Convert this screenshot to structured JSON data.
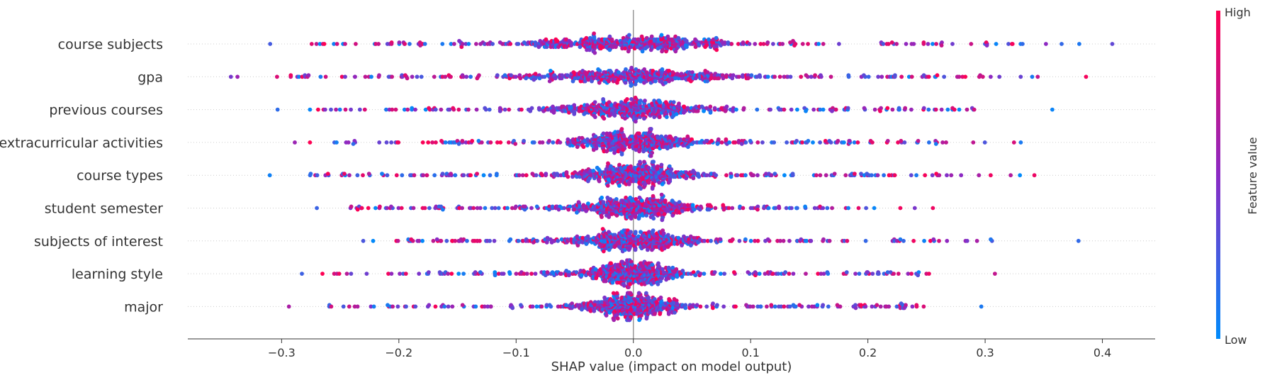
{
  "chart_data": {
    "type": "scatter",
    "subtype": "shap-beeswarm",
    "title": "",
    "xlabel": "SHAP value (impact on model output)",
    "ylabel": "",
    "xlim": [
      -0.38,
      0.445
    ],
    "xticks": [
      -0.3,
      -0.2,
      -0.1,
      0.0,
      0.1,
      0.2,
      0.3,
      0.4
    ],
    "xtick_labels": [
      "−0.3",
      "−0.2",
      "−0.1",
      "0.0",
      "0.1",
      "0.2",
      "0.3",
      "0.4"
    ],
    "zero_line": 0.0,
    "grid": false,
    "colorbar": {
      "label": "Feature value",
      "high_label": "High",
      "low_label": "Low",
      "high_color": "#ff0052",
      "low_color": "#008bfb"
    },
    "features": [
      {
        "name": "course subjects",
        "min": -0.31,
        "max": 0.408,
        "core_spread": 0.09,
        "extremes": [
          -0.31,
          0.408,
          0.38,
          0.365,
          0.352,
          0.33,
          0.32,
          0.3,
          0.288,
          0.272
        ]
      },
      {
        "name": "gpa",
        "min": -0.343,
        "max": 0.386,
        "core_spread": 0.08,
        "extremes": [
          -0.343,
          -0.338,
          -0.292,
          -0.28,
          0.386,
          0.345,
          0.34,
          0.33,
          0.305
        ]
      },
      {
        "name": "previous courses",
        "min": -0.303,
        "max": 0.357,
        "core_spread": 0.06,
        "extremes": [
          -0.303,
          -0.276,
          -0.254,
          0.357,
          0.285,
          0.278,
          0.268
        ]
      },
      {
        "name": "extracurricular activities",
        "min": -0.289,
        "max": 0.33,
        "core_spread": 0.05,
        "extremes": [
          -0.289,
          -0.276,
          -0.255,
          0.33,
          0.325,
          0.3,
          0.29
        ]
      },
      {
        "name": "course types",
        "min": -0.31,
        "max": 0.342,
        "core_spread": 0.05,
        "extremes": [
          -0.31,
          -0.275,
          -0.27,
          0.342,
          0.33,
          0.322,
          0.305,
          0.295
        ]
      },
      {
        "name": "student semester",
        "min": -0.27,
        "max": 0.255,
        "core_spread": 0.05,
        "extremes": [
          -0.27,
          -0.236,
          -0.232,
          0.255,
          0.24,
          0.228
        ]
      },
      {
        "name": "subjects of interest",
        "min": -0.23,
        "max": 0.38,
        "core_spread": 0.05,
        "extremes": [
          -0.23,
          -0.222,
          0.38,
          0.305,
          0.23
        ]
      },
      {
        "name": "learning style",
        "min": -0.283,
        "max": 0.308,
        "core_spread": 0.04,
        "extremes": [
          -0.283,
          -0.265,
          -0.255,
          0.308,
          0.226
        ]
      },
      {
        "name": "major",
        "min": -0.294,
        "max": 0.297,
        "core_spread": 0.04,
        "extremes": [
          -0.294,
          -0.258,
          0.297,
          0.248,
          0.215
        ]
      }
    ]
  }
}
